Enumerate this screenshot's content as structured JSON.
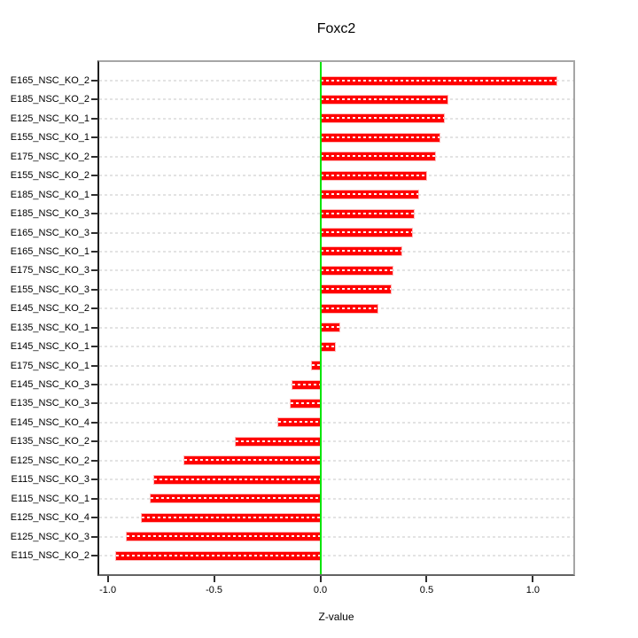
{
  "title": "Foxc2",
  "axes": {
    "xlabel": "Z-value",
    "x_tick_labels": [
      "-1.0",
      "-0.5",
      "0.0",
      "0.5",
      "1.0"
    ],
    "x_tick_values": [
      -1.0,
      -0.5,
      0.0,
      0.5,
      1.0
    ]
  },
  "colors": {
    "bar": "#ff0000",
    "bar_halo": "#ffb9b9",
    "bar_inner_dash": "#ffffff",
    "zero_line": "#00e400",
    "gridline": "#e3e3e3",
    "axis_tick": "#2f2f2f",
    "box_top_right": "#a6a6a6",
    "box_bottom": "#636363",
    "box_left": "#1f1f1f"
  },
  "chart_data": {
    "type": "bar",
    "orientation": "horizontal",
    "title": "Foxc2",
    "xlabel": "Z-value",
    "xlim": [
      -1.04,
      1.19
    ],
    "grid": "horizontal dashed line per category",
    "legend": "none",
    "zero_reference_line": 0.0,
    "categories": [
      "E165_NSC_KO_2",
      "E185_NSC_KO_2",
      "E125_NSC_KO_1",
      "E155_NSC_KO_1",
      "E175_NSC_KO_2",
      "E155_NSC_KO_2",
      "E185_NSC_KO_1",
      "E185_NSC_KO_3",
      "E165_NSC_KO_3",
      "E165_NSC_KO_1",
      "E175_NSC_KO_3",
      "E155_NSC_KO_3",
      "E145_NSC_KO_2",
      "E135_NSC_KO_1",
      "E145_NSC_KO_1",
      "E175_NSC_KO_1",
      "E145_NSC_KO_3",
      "E135_NSC_KO_3",
      "E145_NSC_KO_4",
      "E135_NSC_KO_2",
      "E125_NSC_KO_2",
      "E115_NSC_KO_3",
      "E115_NSC_KO_1",
      "E125_NSC_KO_4",
      "E125_NSC_KO_3",
      "E115_NSC_KO_2"
    ],
    "values": [
      1.11,
      0.6,
      0.58,
      0.56,
      0.54,
      0.5,
      0.46,
      0.44,
      0.43,
      0.38,
      0.34,
      0.33,
      0.27,
      0.09,
      0.07,
      -0.04,
      -0.13,
      -0.14,
      -0.2,
      -0.4,
      -0.64,
      -0.78,
      -0.8,
      -0.84,
      -0.91,
      -0.96
    ]
  }
}
